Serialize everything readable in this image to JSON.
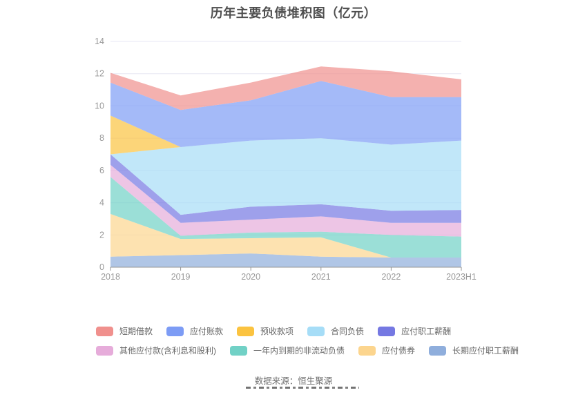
{
  "title": "历年主要负债堆积图（亿元）",
  "footer": {
    "source": "数据来源：恒生聚源"
  },
  "colors": {
    "title_text": "#4e4e4e",
    "axis_label": "#999999",
    "axis_line": "#949494",
    "gridline": "#e7e7f4",
    "legend_text": "#666666",
    "footer_text": "#707070"
  },
  "chart_data": {
    "type": "area",
    "stacked": true,
    "title": "历年主要负债堆积图（亿元）",
    "x": [
      "2018",
      "2019",
      "2020",
      "2021",
      "2022",
      "2023H1"
    ],
    "xlabel": "",
    "ylabel": "",
    "ylim": [
      0,
      14
    ],
    "y_ticks": [
      0,
      2,
      4,
      6,
      8,
      10,
      12,
      14
    ],
    "grid": true,
    "legend_position": "bottom",
    "area_opacity": 0.7,
    "series": [
      {
        "name": "长期应付职工薪酬",
        "key": "longterm-payroll-payable",
        "color": "#8FAEDC",
        "values": [
          0.65,
          0.75,
          0.85,
          0.65,
          0.6,
          0.6
        ]
      },
      {
        "name": "应付债券",
        "key": "bonds-payable",
        "color": "#FCD58E",
        "values": [
          2.65,
          1.0,
          0.95,
          1.2,
          0,
          0
        ]
      },
      {
        "name": "一年内到期的非流动负债",
        "key": "noncurrent-liabilities-due-within-1y",
        "color": "#71D1C6",
        "values": [
          2.3,
          0.2,
          0.35,
          0.35,
          1.4,
          1.3
        ]
      },
      {
        "name": "其他应付款(含利息和股利)",
        "key": "other-payables",
        "color": "#E6ACDA",
        "values": [
          0.75,
          0.8,
          0.8,
          0.95,
          0.75,
          0.85
        ]
      },
      {
        "name": "应付职工薪酬",
        "key": "payroll-payable",
        "color": "#7578E2",
        "values": [
          0.65,
          0.5,
          0.8,
          0.75,
          0.75,
          0.8
        ]
      },
      {
        "name": "合同负债",
        "key": "contract-liabilities",
        "color": "#A6DDF7",
        "values": [
          0,
          4.2,
          4.1,
          4.1,
          4.1,
          4.3
        ]
      },
      {
        "name": "预收款项",
        "key": "advance-receipts",
        "color": "#FBC340",
        "values": [
          2.4,
          0,
          0,
          0,
          0,
          0
        ]
      },
      {
        "name": "应付账款",
        "key": "accounts-payable",
        "color": "#7D9CF5",
        "values": [
          2.05,
          2.3,
          2.5,
          3.55,
          2.95,
          2.7
        ]
      },
      {
        "name": "短期借款",
        "key": "short-term-borrowings",
        "color": "#F0908D",
        "values": [
          0.6,
          0.9,
          1.1,
          0.9,
          1.6,
          1.1
        ]
      }
    ],
    "legend_rows": [
      [
        "短期借款",
        "应付账款",
        "预收款项",
        "合同负债",
        "应付职工薪酬"
      ],
      [
        "其他应付款(含利息和股利)",
        "一年内到期的非流动负债",
        "应付债券",
        "长期应付职工薪酬"
      ]
    ]
  }
}
